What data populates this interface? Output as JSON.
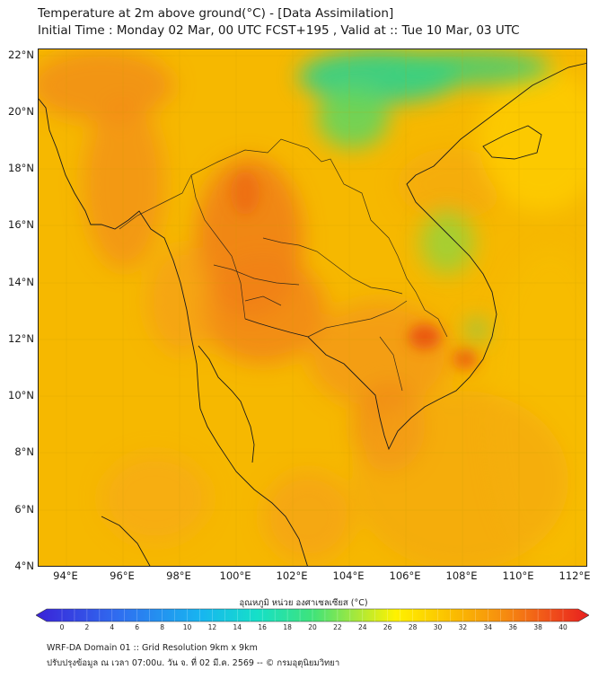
{
  "header": {
    "title_line1": "Temperature at 2m above ground(°C) - [Data Assimilation]",
    "title_line2": "Initial Time : Monday 02 Mar, 00 UTC FCST+195 , Valid at :: Tue 10 Mar, 03 UTC"
  },
  "map": {
    "lat_labels": [
      "22°N",
      "20°N",
      "18°N",
      "16°N",
      "14°N",
      "12°N",
      "10°N",
      "8°N",
      "6°N",
      "4°N"
    ],
    "lon_labels": [
      "94°E",
      "96°E",
      "98°E",
      "100°E",
      "102°E",
      "104°E",
      "106°E",
      "108°E",
      "110°E",
      "112°E"
    ],
    "colors": {
      "background_warm": "#f6b800",
      "hot": "#ef6a12",
      "cool": "#35d48a",
      "lines": "#1a1a1a"
    }
  },
  "colorbar": {
    "title": "อุณหภูมิ หน่วย องศาเซลเซียส (°C)",
    "ticks": [
      "0",
      "2",
      "4",
      "6",
      "8",
      "10",
      "12",
      "14",
      "16",
      "18",
      "20",
      "22",
      "24",
      "26",
      "28",
      "30",
      "32",
      "34",
      "36",
      "38",
      "40"
    ],
    "min": 0,
    "max": 40
  },
  "footer": {
    "line1": "WRF-DA Domain 01 :: Grid Resolution 9km x 9km",
    "line2": "ปรับปรุงข้อมูล ณ เวลา 07:00u. วัน จ. ที่ 02 มี.ค. 2569 -- © กรมอุตุนิยมวิทยา"
  }
}
